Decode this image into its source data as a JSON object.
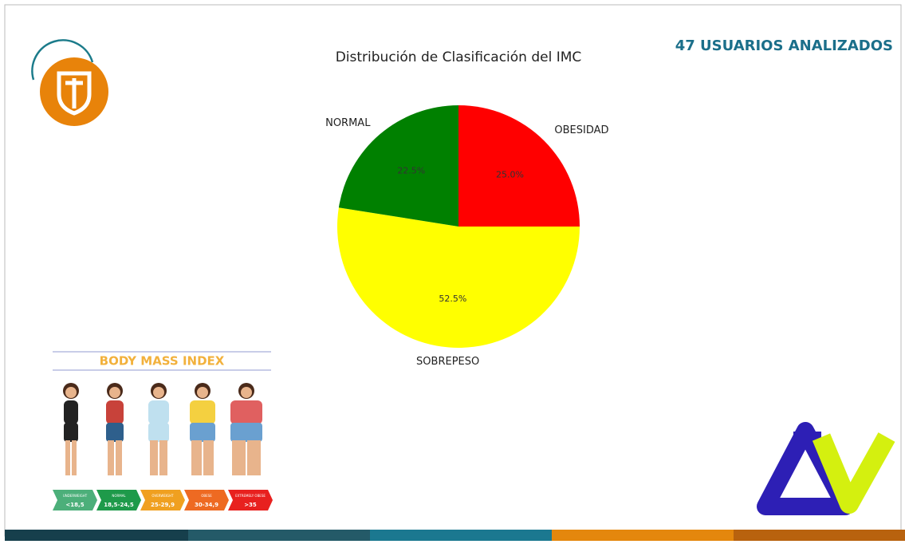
{
  "chart_data": {
    "type": "pie",
    "title": "Distribución de Clasificación del IMC",
    "categories": [
      "OBESIDAD",
      "SOBREPESO",
      "NORMAL"
    ],
    "values": [
      25.0,
      52.5,
      22.5
    ],
    "value_labels": [
      "25.0%",
      "52.5%",
      "22.5%"
    ],
    "colors": [
      "#ff0000",
      "#ffff00",
      "#008000"
    ]
  },
  "header": {
    "badge": "47 USUARIOS ANALIZADOS"
  },
  "infographic": {
    "title": "BODY MASS INDEX",
    "classes": [
      "UNDERWEIGHT",
      "NORMAL",
      "OVERWEIGHT",
      "OBESE",
      "EXTREMELY OBESE"
    ],
    "ranges": [
      "<18,5",
      "18,5-24,5",
      "25-29,9",
      "30-34,9",
      ">35"
    ]
  }
}
